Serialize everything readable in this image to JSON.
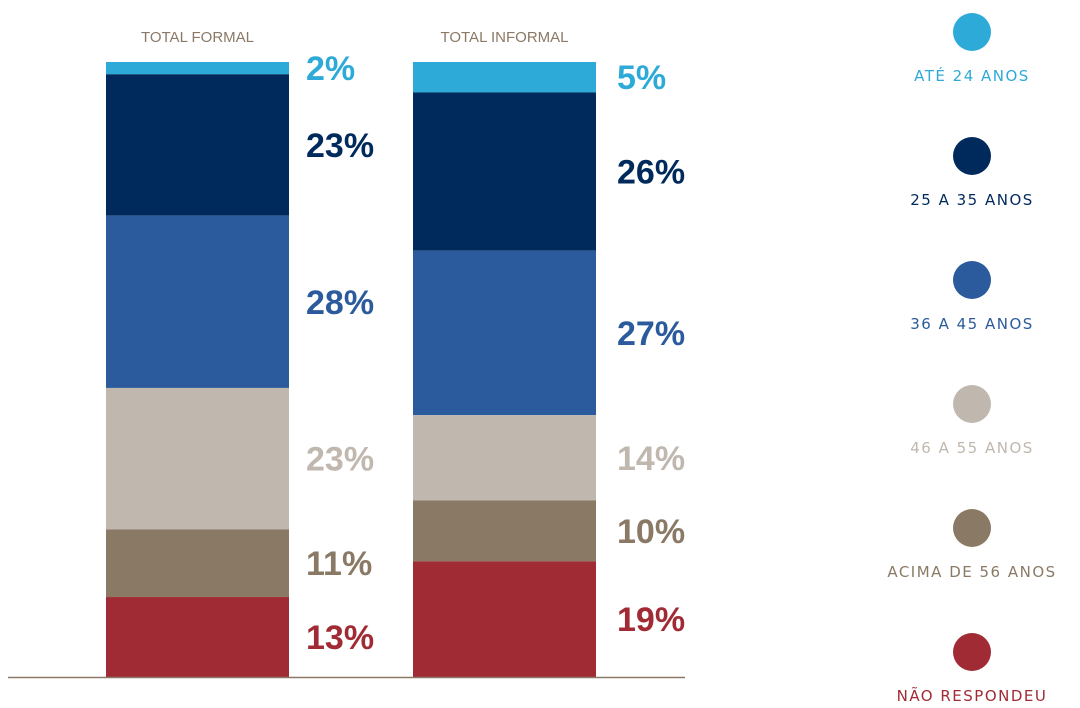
{
  "chart_data": {
    "type": "bar",
    "stacked": true,
    "categories": [
      "TOTAL FORMAL",
      "TOTAL INFORMAL"
    ],
    "series": [
      {
        "name": "ATÉ 24 ANOS",
        "color": "#2eaad8",
        "values": [
          2,
          5
        ],
        "labels": [
          "2%",
          "5%"
        ]
      },
      {
        "name": "25 A 35 ANOS",
        "color": "#002a5c",
        "values": [
          23,
          26
        ],
        "labels": [
          "23%",
          "26%"
        ]
      },
      {
        "name": "36 A 45 ANOS",
        "color": "#2b5b9c",
        "values": [
          28,
          27
        ],
        "labels": [
          "28%",
          "27%"
        ]
      },
      {
        "name": "46 A 55 ANOS",
        "color": "#c0b8af",
        "values": [
          23,
          14
        ],
        "labels": [
          "23%",
          "14%"
        ]
      },
      {
        "name": "ACIMA DE 56 ANOS",
        "color": "#8a7965",
        "values": [
          11,
          10
        ],
        "labels": [
          "11%",
          "10%"
        ]
      },
      {
        "name": "NÃO RESPONDEU",
        "color": "#a12b34",
        "values": [
          13,
          19
        ],
        "labels": [
          "13%",
          "19%"
        ]
      }
    ],
    "ylim": [
      0,
      100
    ],
    "grid": false,
    "legend": "right",
    "axis_color": "#8a7966"
  }
}
